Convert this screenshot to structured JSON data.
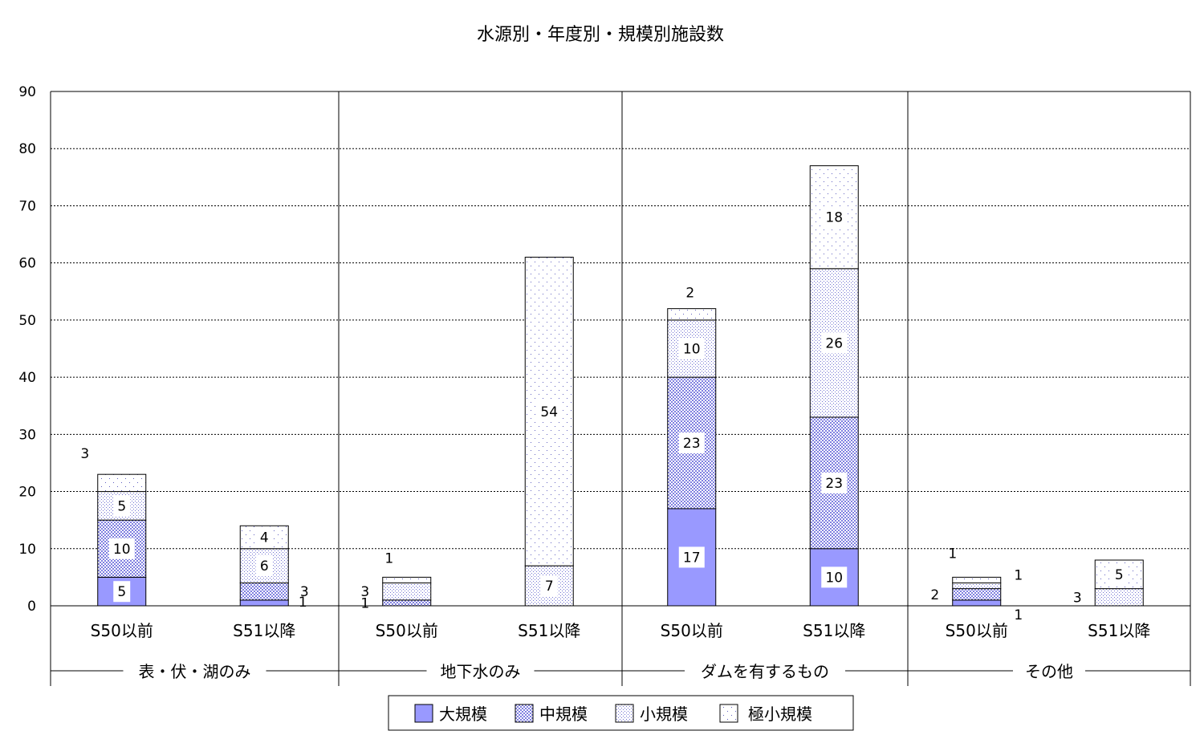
{
  "chart_data": {
    "type": "bar",
    "stacked": true,
    "title": "水源別・年度別・規模別施設数",
    "xlabel": "",
    "ylabel": "",
    "ylim": [
      0,
      90
    ],
    "yticks": [
      "0",
      "10",
      "20",
      "30",
      "40",
      "50",
      "60",
      "70",
      "80",
      "90"
    ],
    "grid": "horizontal dotted",
    "legend_position": "bottom",
    "groups": [
      "表・伏・湖のみ",
      "地下水のみ",
      "ダムを有するもの",
      "その他"
    ],
    "categories": [
      "S50以前",
      "S51以降",
      "S50以前",
      "S51以降",
      "S50以前",
      "S51以降",
      "S50以前",
      "S51以降"
    ],
    "series": [
      {
        "name": "大規模",
        "values": [
          5,
          1,
          0,
          0,
          17,
          10,
          1,
          0
        ],
        "labels": [
          "5",
          "1",
          "",
          "",
          "17",
          "10",
          "1",
          ""
        ]
      },
      {
        "name": "中規模",
        "values": [
          10,
          3,
          1,
          0,
          23,
          23,
          2,
          0
        ],
        "labels": [
          "10",
          "3",
          "1",
          "",
          "23",
          "23",
          "2",
          ""
        ]
      },
      {
        "name": "小規模",
        "values": [
          5,
          6,
          3,
          7,
          10,
          26,
          1,
          3
        ],
        "labels": [
          "5",
          "6",
          "3",
          "7",
          "10",
          "26",
          "1",
          "3"
        ]
      },
      {
        "name": "極小規模",
        "values": [
          3,
          4,
          1,
          54,
          2,
          18,
          1,
          5
        ],
        "labels": [
          "3",
          "4",
          "1",
          "54",
          "2",
          "18",
          "1",
          "5"
        ]
      }
    ],
    "colors": {
      "large": "#9999ff",
      "outline": "#000000",
      "pattern": "#6666cc"
    }
  }
}
